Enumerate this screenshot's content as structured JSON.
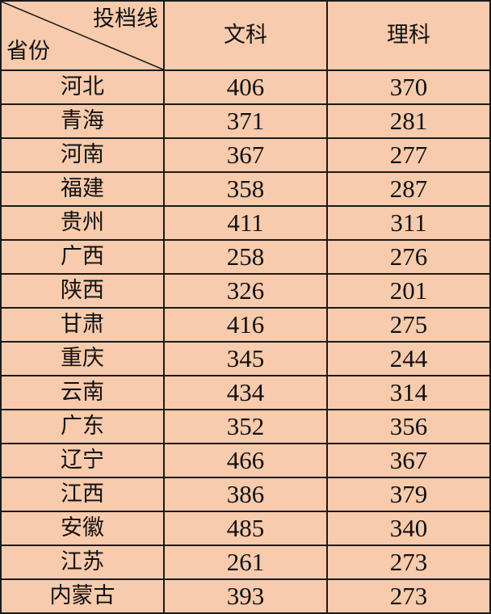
{
  "header": {
    "corner_top": "投档线",
    "corner_bottom": "省份",
    "col1": "文科",
    "col2": "理科"
  },
  "rows": [
    {
      "province": "河北",
      "wenke": "406",
      "like": "370"
    },
    {
      "province": "青海",
      "wenke": "371",
      "like": "281"
    },
    {
      "province": "河南",
      "wenke": "367",
      "like": "277"
    },
    {
      "province": "福建",
      "wenke": "358",
      "like": "287"
    },
    {
      "province": "贵州",
      "wenke": "411",
      "like": "311"
    },
    {
      "province": "广西",
      "wenke": "258",
      "like": "276"
    },
    {
      "province": "陕西",
      "wenke": "326",
      "like": "201"
    },
    {
      "province": "甘肃",
      "wenke": "416",
      "like": "275"
    },
    {
      "province": "重庆",
      "wenke": "345",
      "like": "244"
    },
    {
      "province": "云南",
      "wenke": "434",
      "like": "314"
    },
    {
      "province": "广东",
      "wenke": "352",
      "like": "356"
    },
    {
      "province": "辽宁",
      "wenke": "466",
      "like": "367"
    },
    {
      "province": "江西",
      "wenke": "386",
      "like": "379"
    },
    {
      "province": "安徽",
      "wenke": "485",
      "like": "340"
    },
    {
      "province": "江苏",
      "wenke": "261",
      "like": "273"
    },
    {
      "province": "内蒙古",
      "wenke": "393",
      "like": "273"
    }
  ],
  "colors": {
    "cell_background": "#F8CBAD",
    "border": "#1a1a1a"
  }
}
